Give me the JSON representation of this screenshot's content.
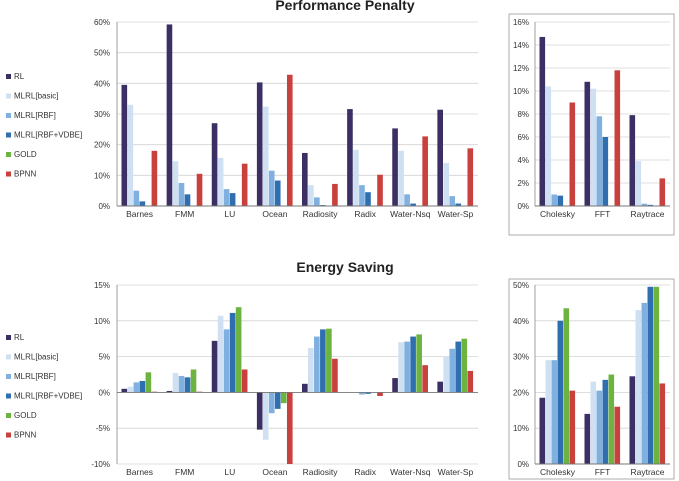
{
  "colors": {
    "RL": "#3b2f63",
    "MLRL[basic]": "#cfe0f2",
    "MLRL[RBF]": "#7fb0df",
    "MLRL[RBF+VDBE]": "#2f6fb0",
    "GOLD": "#6cb33f",
    "BPNN": "#c9413c"
  },
  "legend_top": [
    "RL",
    "MLRL[basic]",
    "MLRL[RBF]",
    "MLRL[RBF+VDBE]",
    "GOLD",
    "BPNN"
  ],
  "legend_bottom": [
    "RL",
    "MLRL[basic]",
    "MLRL[RBF]",
    "MLRL[RBF+VDBE]",
    "GOLD",
    "BPNN"
  ],
  "chart_data": [
    {
      "id": "perf-main",
      "type": "bar",
      "title": "Performance Penalty",
      "categories": [
        "Barnes",
        "FMM",
        "LU",
        "Ocean",
        "Radiosity",
        "Radix",
        "Water-Nsq",
        "Water-Sp"
      ],
      "ylim": [
        0,
        60
      ],
      "yticks": [
        "0%",
        "10%",
        "20%",
        "30%",
        "40%",
        "50%",
        "60%"
      ],
      "ytick_values": [
        0,
        10,
        20,
        30,
        40,
        50,
        60
      ],
      "series": [
        {
          "name": "RL",
          "values": [
            39.5,
            59.2,
            27,
            40.3,
            17.3,
            31.6,
            25.3,
            31.4
          ]
        },
        {
          "name": "MLRL[basic]",
          "values": [
            33,
            14.6,
            15.7,
            32.4,
            6.8,
            18.3,
            18,
            14
          ]
        },
        {
          "name": "MLRL[RBF]",
          "values": [
            5,
            7.5,
            5.5,
            11.5,
            2.8,
            6.8,
            3.8,
            3.2
          ]
        },
        {
          "name": "MLRL[RBF+VDBE]",
          "values": [
            1.5,
            3.8,
            4.2,
            8.3,
            0.3,
            4.5,
            0.8,
            0.8
          ]
        },
        {
          "name": "GOLD",
          "values": [
            0,
            0,
            0,
            0,
            0,
            0,
            0,
            0
          ]
        },
        {
          "name": "BPNN",
          "values": [
            18,
            10.5,
            13.8,
            42.8,
            7.2,
            10.2,
            22.7,
            18.8
          ]
        }
      ]
    },
    {
      "id": "perf-side",
      "type": "bar",
      "title": "",
      "categories": [
        "Cholesky",
        "FFT",
        "Raytrace"
      ],
      "ylim": [
        0,
        16
      ],
      "yticks": [
        "0%",
        "2%",
        "4%",
        "6%",
        "8%",
        "10%",
        "12%",
        "14%",
        "16%"
      ],
      "ytick_values": [
        0,
        2,
        4,
        6,
        8,
        10,
        12,
        14,
        16
      ],
      "series": [
        {
          "name": "RL",
          "values": [
            14.7,
            10.8,
            7.9
          ]
        },
        {
          "name": "MLRL[basic]",
          "values": [
            10.4,
            10.2,
            3.9
          ]
        },
        {
          "name": "MLRL[RBF]",
          "values": [
            1,
            7.8,
            0.2
          ]
        },
        {
          "name": "MLRL[RBF+VDBE]",
          "values": [
            0.9,
            6,
            0.1
          ]
        },
        {
          "name": "GOLD",
          "values": [
            0,
            0,
            0
          ]
        },
        {
          "name": "BPNN",
          "values": [
            9,
            11.8,
            2.4
          ]
        }
      ]
    },
    {
      "id": "energy-main",
      "type": "bar",
      "title": "Energy Saving",
      "categories": [
        "Barnes",
        "FMM",
        "LU",
        "Ocean",
        "Radiosity",
        "Radix",
        "Water-Nsq",
        "Water-Sp"
      ],
      "ylim": [
        -10,
        15
      ],
      "yticks": [
        "-10%",
        "-5%",
        "0%",
        "5%",
        "10%",
        "15%"
      ],
      "ytick_values": [
        -10,
        -5,
        0,
        5,
        10,
        15
      ],
      "series": [
        {
          "name": "RL",
          "values": [
            0.5,
            0.2,
            7.2,
            -5.2,
            1.2,
            0,
            2,
            1.5
          ]
        },
        {
          "name": "MLRL[basic]",
          "values": [
            0.8,
            2.7,
            10.7,
            -6.6,
            6.2,
            0,
            7,
            5
          ]
        },
        {
          "name": "MLRL[RBF]",
          "values": [
            1.4,
            2.3,
            8.8,
            -2.9,
            7.8,
            -0.3,
            7.1,
            6.1
          ]
        },
        {
          "name": "MLRL[RBF+VDBE]",
          "values": [
            1.6,
            2.1,
            11.1,
            -2.3,
            8.8,
            -0.2,
            7.8,
            7.1
          ]
        },
        {
          "name": "GOLD",
          "values": [
            2.8,
            3.2,
            11.9,
            -1.5,
            8.9,
            0,
            8.1,
            7.5
          ]
        },
        {
          "name": "BPNN",
          "values": [
            0.1,
            0.1,
            3.2,
            -10,
            4.7,
            -0.5,
            3.8,
            3
          ]
        }
      ]
    },
    {
      "id": "energy-side",
      "type": "bar",
      "title": "",
      "categories": [
        "Cholesky",
        "FFT",
        "Raytrace"
      ],
      "ylim": [
        0,
        50
      ],
      "yticks": [
        "0%",
        "10%",
        "20%",
        "30%",
        "40%",
        "50%"
      ],
      "ytick_values": [
        0,
        10,
        20,
        30,
        40,
        50
      ],
      "series": [
        {
          "name": "RL",
          "values": [
            18.5,
            14,
            24.5
          ]
        },
        {
          "name": "MLRL[basic]",
          "values": [
            29,
            23,
            43
          ]
        },
        {
          "name": "MLRL[RBF]",
          "values": [
            29,
            20.5,
            45
          ]
        },
        {
          "name": "MLRL[RBF+VDBE]",
          "values": [
            40,
            23.5,
            49.5
          ]
        },
        {
          "name": "GOLD",
          "values": [
            43.5,
            25,
            49.5
          ]
        },
        {
          "name": "BPNN",
          "values": [
            20.5,
            16,
            22.5
          ]
        }
      ]
    }
  ]
}
